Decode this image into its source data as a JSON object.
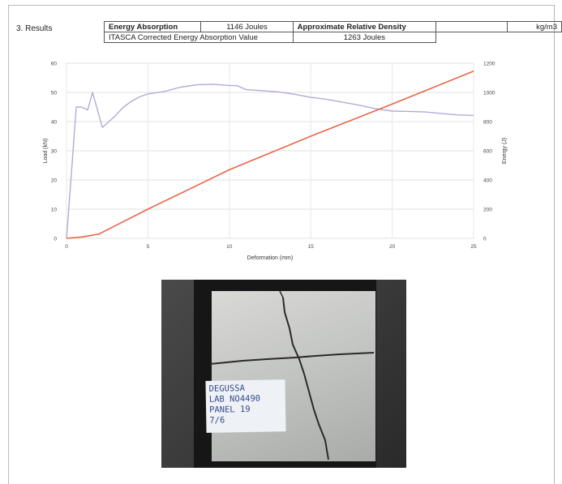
{
  "section_title": "3. Results",
  "summary": {
    "energy_absorption_label": "Energy Absorption",
    "energy_absorption_value": "1146 Joules",
    "relative_density_label": "Approximate Relative Density",
    "relative_density_value": "",
    "relative_density_unit": "kg/m3",
    "corrected_label": "ITASCA Corrected Energy Absorption Value",
    "corrected_value": "1263 Joules"
  },
  "chart_data": {
    "type": "line",
    "xlabel": "Deformation (mm)",
    "ylabel_left": "Load (kN)",
    "ylabel_right": "Energy (J)",
    "xlim": [
      0,
      25
    ],
    "ylim_left": [
      0,
      60
    ],
    "ylim_right": [
      0,
      1200
    ],
    "x_ticks": [
      "0",
      "5",
      "10",
      "15",
      "20",
      "25"
    ],
    "y_ticks_left": [
      "0",
      "10",
      "20",
      "30",
      "40",
      "50",
      "60"
    ],
    "y_ticks_right": [
      "0",
      "200",
      "400",
      "600",
      "800",
      "1000",
      "1200"
    ],
    "grid": true,
    "colors": {
      "load": "#b7a9d6",
      "energy": "#e8664a"
    },
    "series": [
      {
        "axis": "left",
        "x": [
          0,
          0.3,
          0.6,
          0.9,
          1.3,
          1.6,
          1.9,
          2.2,
          2.6,
          3,
          3.5,
          4,
          4.5,
          5,
          6,
          7,
          8,
          9,
          10,
          10.5,
          11,
          12,
          13,
          14,
          15,
          16,
          17,
          18,
          19,
          20,
          21,
          22,
          23,
          24,
          25
        ],
        "y": [
          0,
          22,
          45,
          45,
          44,
          50,
          44,
          38,
          40,
          42,
          45,
          47,
          48.5,
          49.5,
          50.3,
          51.8,
          52.6,
          52.8,
          52.4,
          52.3,
          51,
          50.6,
          50.2,
          49.4,
          48.3,
          47.6,
          46.6,
          45.6,
          44.4,
          43.6,
          43.5,
          43.3,
          42.8,
          42.3,
          42.1
        ]
      },
      {
        "axis": "right",
        "x": [
          0,
          1,
          2,
          5,
          10,
          15,
          20,
          25
        ],
        "y": [
          0,
          10,
          30,
          200,
          470,
          700,
          920,
          1146
        ]
      }
    ]
  },
  "photo": {
    "label_lines": [
      "DEGUSSA",
      "LAB NO4490",
      "PANEL 19",
      "7/6"
    ]
  }
}
